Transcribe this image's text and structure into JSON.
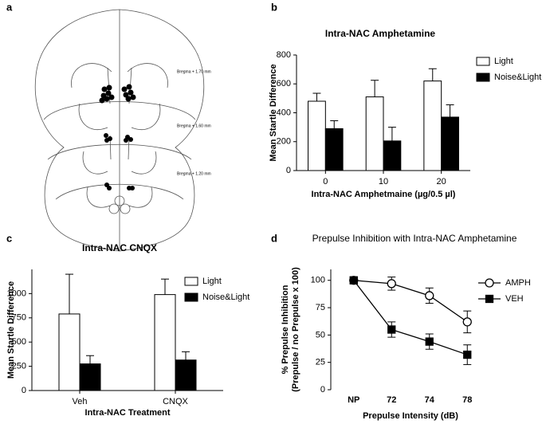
{
  "panel_labels": [
    "a",
    "b",
    "c",
    "d"
  ],
  "atlas": {
    "labels": [
      "Bregma + 1.70 mm",
      "Bregma + 1.60 mm",
      "Bregma + 1.20 mm"
    ]
  },
  "chart_data": [
    {
      "type": "bar",
      "title": "Intra-NAC Amphetamine",
      "ylabel": [
        "Mean Startle Difference"
      ],
      "xlabel": "Intra-NAC Amphetmaine (µg/0.5 µl)",
      "categories": [
        "0",
        "10",
        "20"
      ],
      "series": [
        {
          "name": "Light",
          "color": "#ffffff",
          "values": [
            480,
            510,
            620
          ],
          "errors": [
            55,
            115,
            85
          ]
        },
        {
          "name": "Noise&Light",
          "color": "#000000",
          "values": [
            290,
            205,
            370
          ],
          "errors": [
            55,
            95,
            85
          ]
        }
      ],
      "ylim": [
        0,
        800
      ],
      "yticks": [
        0,
        200,
        400,
        600,
        800
      ],
      "legend": "upper right"
    },
    {
      "type": "bar",
      "title": "Intra-NAC CNQX",
      "ylabel": [
        "Mean Startle Difference"
      ],
      "xlabel": "Intra-NAC Treatment",
      "categories": [
        "Veh",
        "CNQX"
      ],
      "series": [
        {
          "name": "Light",
          "color": "#ffffff",
          "values": [
            790,
            990
          ],
          "errors": [
            410,
            160
          ]
        },
        {
          "name": "Noise&Light",
          "color": "#000000",
          "values": [
            275,
            315
          ],
          "errors": [
            85,
            85
          ]
        }
      ],
      "ylim": [
        0,
        1250
      ],
      "yticks": [
        0,
        250,
        500,
        750,
        1000
      ],
      "legend": "upper right"
    },
    {
      "type": "line",
      "title": "Prepulse Inhibition with Intra-NAC Amphetamine",
      "ylabel": [
        "% Prepulse Inhibition",
        "(Prepulse / no Prepulse x 100)"
      ],
      "xlabel": "Prepulse Intensity (dB)",
      "categories": [
        "NP",
        "72",
        "74",
        "78"
      ],
      "series": [
        {
          "name": "AMPH",
          "color": "#000000",
          "marker": "open-circle",
          "values": [
            100,
            97,
            86,
            62
          ],
          "errors": [
            3,
            6,
            7,
            10
          ]
        },
        {
          "name": "VEH",
          "color": "#000000",
          "marker": "filled-square",
          "values": [
            100,
            55,
            44,
            32
          ],
          "errors": [
            3,
            7,
            7,
            9
          ]
        }
      ],
      "ylim": [
        0,
        110
      ],
      "yticks": [
        0,
        25,
        50,
        75,
        100
      ],
      "legend": "right"
    }
  ]
}
